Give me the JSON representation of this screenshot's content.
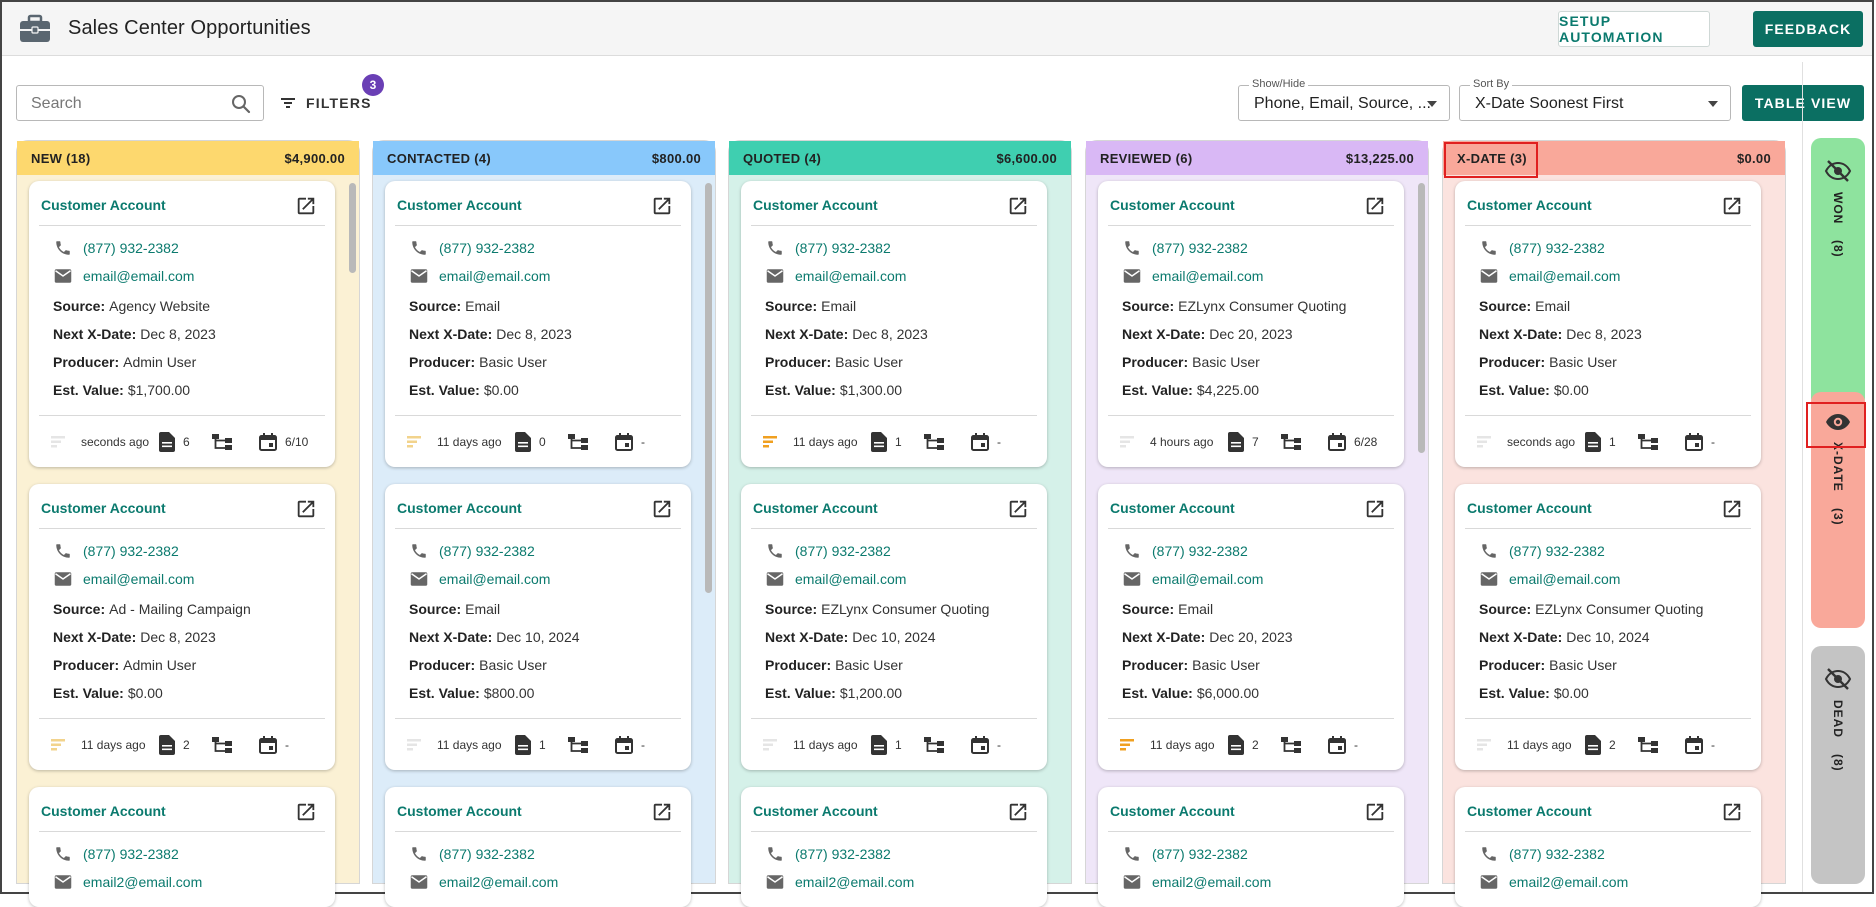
{
  "header": {
    "title": "Sales Center Opportunities",
    "setup_label": "SETUP AUTOMATION",
    "feedback_label": "FEEDBACK"
  },
  "toolbar": {
    "search_placeholder": "Search",
    "filters_label": "FILTERS",
    "filters_count": "3",
    "show_hide_label": "Show/Hide",
    "show_hide_value": "Phone, Email, Source, ...",
    "sort_label": "Sort By",
    "sort_value": "X-Date Soonest First",
    "table_view_label": "TABLE VIEW"
  },
  "columns": [
    {
      "title": "NEW (18)",
      "total": "$4,900.00",
      "color": "#fdd86e",
      "bg": "#fbf1d4",
      "cards": [
        {
          "account": "Customer Account",
          "phone": "(877) 932-2382",
          "email": "email@email.com",
          "source": "Agency Website",
          "xdate": "Dec 8, 2023",
          "producer": "Admin User",
          "value": "$1,700.00",
          "ago": "seconds ago",
          "docs": "6",
          "cal": "6/10",
          "bar_color": "#e5e5e5"
        },
        {
          "account": "Customer Account",
          "phone": "(877) 932-2382",
          "email": "email@email.com",
          "source": "Ad - Mailing Campaign",
          "xdate": "Dec 8, 2023",
          "producer": "Admin User",
          "value": "$0.00",
          "ago": "11 days ago",
          "docs": "2",
          "cal": "-",
          "bar_color": "#f2d38c"
        },
        {
          "account": "Customer Account",
          "phone": "(877) 932-2382",
          "email": "email2@email.com"
        }
      ]
    },
    {
      "title": "CONTACTED (4)",
      "total": "$800.00",
      "color": "#88c8fb",
      "bg": "#dcecf9",
      "cards": [
        {
          "account": "Customer Account",
          "phone": "(877) 932-2382",
          "email": "email@email.com",
          "source": "Email",
          "xdate": "Dec 8, 2023",
          "producer": "Basic User",
          "value": "$0.00",
          "ago": "11 days ago",
          "docs": "0",
          "cal": "-",
          "bar_color": "#f2d38c"
        },
        {
          "account": "Customer Account",
          "phone": "(877) 932-2382",
          "email": "email@email.com",
          "source": "Email",
          "xdate": "Dec 10, 2024",
          "producer": "Basic User",
          "value": "$800.00",
          "ago": "11 days ago",
          "docs": "1",
          "cal": "-",
          "bar_color": "#e5e5e5"
        },
        {
          "account": "Customer Account",
          "phone": "(877) 932-2382",
          "email": "email2@email.com"
        }
      ]
    },
    {
      "title": "QUOTED (4)",
      "total": "$6,600.00",
      "color": "#3fcfb0",
      "bg": "#d5f1e9",
      "cards": [
        {
          "account": "Customer Account",
          "phone": "(877) 932-2382",
          "email": "email@email.com",
          "source": "Email",
          "xdate": "Dec 8, 2023",
          "producer": "Basic User",
          "value": "$1,300.00",
          "ago": "11 days ago",
          "docs": "1",
          "cal": "-",
          "bar_color": "#f0a020"
        },
        {
          "account": "Customer Account",
          "phone": "(877) 932-2382",
          "email": "email@email.com",
          "source": "EZLynx Consumer Quoting",
          "xdate": "Dec 10, 2024",
          "producer": "Basic User",
          "value": "$1,200.00",
          "ago": "11 days ago",
          "docs": "1",
          "cal": "-",
          "bar_color": "#e5e5e5"
        },
        {
          "account": "Customer Account",
          "phone": "(877) 932-2382",
          "email": "email2@email.com"
        }
      ]
    },
    {
      "title": "REVIEWED (6)",
      "total": "$13,225.00",
      "color": "#d9b8f5",
      "bg": "#efe6f8",
      "cards": [
        {
          "account": "Customer Account",
          "phone": "(877) 932-2382",
          "email": "email@email.com",
          "source": "EZLynx Consumer Quoting",
          "xdate": "Dec 20, 2023",
          "producer": "Basic User",
          "value": "$4,225.00",
          "ago": "4 hours ago",
          "docs": "7",
          "cal": "6/28",
          "bar_color": "#e5e5e5"
        },
        {
          "account": "Customer Account",
          "phone": "(877) 932-2382",
          "email": "email@email.com",
          "source": "Email",
          "xdate": "Dec 20, 2023",
          "producer": "Basic User",
          "value": "$6,000.00",
          "ago": "11 days ago",
          "docs": "2",
          "cal": "-",
          "bar_color": "#f0a020"
        },
        {
          "account": "Customer Account",
          "phone": "(877) 932-2382",
          "email": "email2@email.com"
        }
      ]
    },
    {
      "title": "X-DATE (3)",
      "total": "$0.00",
      "color": "#f9a89a",
      "bg": "#fbe3df",
      "cards": [
        {
          "account": "Customer Account",
          "phone": "(877) 932-2382",
          "email": "email@email.com",
          "source": "Email",
          "xdate": "Dec 8, 2023",
          "producer": "Basic User",
          "value": "$0.00",
          "ago": "seconds ago",
          "docs": "1",
          "cal": "-",
          "bar_color": "#e5e5e5"
        },
        {
          "account": "Customer Account",
          "phone": "(877) 932-2382",
          "email": "email@email.com",
          "source": "EZLynx Consumer Quoting",
          "xdate": "Dec 10, 2024",
          "producer": "Basic User",
          "value": "$0.00",
          "ago": "11 days ago",
          "docs": "2",
          "cal": "-",
          "bar_color": "#e5e5e5"
        },
        {
          "account": "Customer Account",
          "phone": "(877) 932-2382",
          "email": "email2@email.com"
        }
      ]
    }
  ],
  "labels": {
    "source": "Source:",
    "xdate": "Next X-Date:",
    "producer": "Producer:",
    "value": "Est. Value:"
  },
  "rail": [
    {
      "label": "WON",
      "count": "(8)",
      "color": "#8ee39e",
      "icon": "eye-off-icon"
    },
    {
      "label": "X-DATE",
      "count": "(3)",
      "color": "#f9a89a",
      "icon": "eye-icon"
    },
    {
      "label": "DEAD",
      "count": "(8)",
      "color": "#c4c4c4",
      "icon": "eye-off-icon"
    }
  ]
}
